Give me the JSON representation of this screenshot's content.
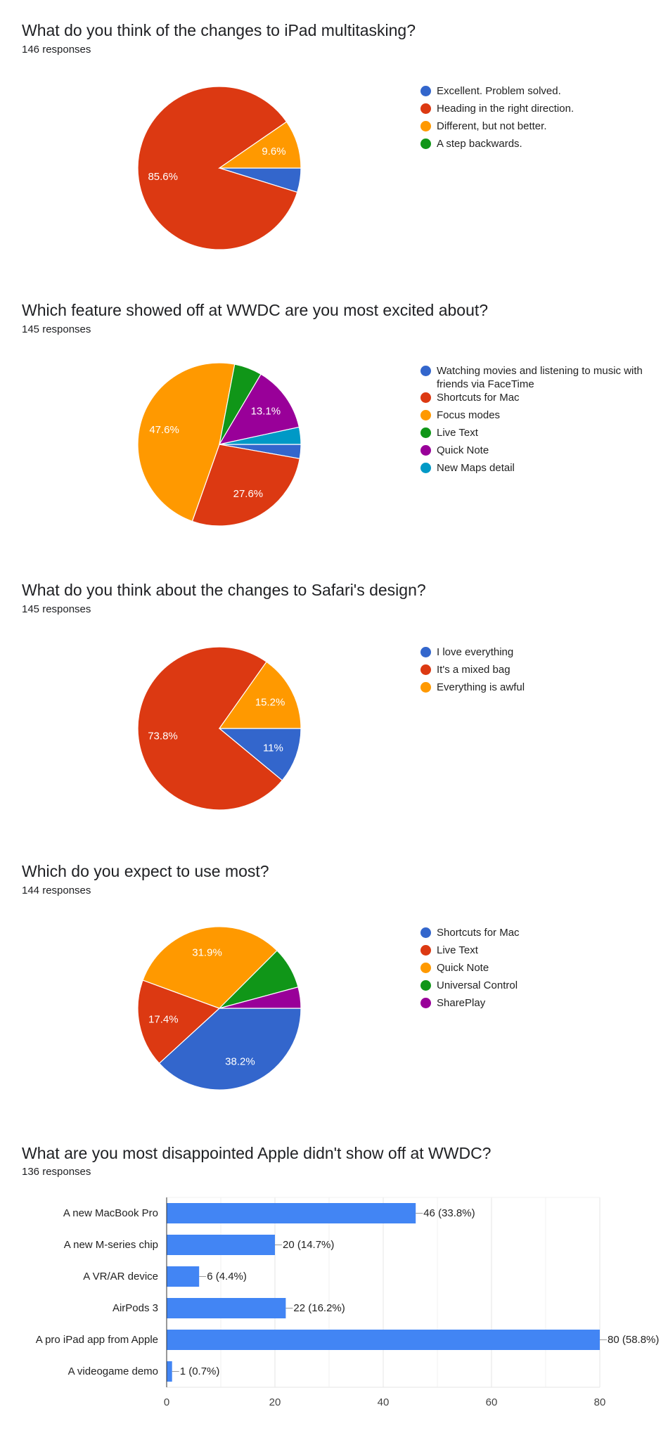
{
  "colors": {
    "blue": "#3366cc",
    "red": "#dc3912",
    "orange": "#ff9900",
    "green": "#109618",
    "purple": "#990099",
    "teal": "#0099c6",
    "bar": "#4285f4"
  },
  "chart_data": [
    {
      "type": "pie",
      "title": "What do you think of the changes to iPad multitasking?",
      "subtitle": "146 responses",
      "legend": "right",
      "slices": [
        {
          "name": "Excellent. Problem solved.",
          "percent": 4.8,
          "color": "#3366cc",
          "label": ""
        },
        {
          "name": "Heading in the right direction.",
          "percent": 85.6,
          "color": "#dc3912",
          "label": "85.6%"
        },
        {
          "name": "Different, but not better.",
          "percent": 9.6,
          "color": "#ff9900",
          "label": "9.6%"
        },
        {
          "name": "A step backwards.",
          "percent": 0,
          "color": "#109618",
          "label": ""
        }
      ]
    },
    {
      "type": "pie",
      "title": "Which feature showed off at WWDC are you most excited about?",
      "subtitle": "145 responses",
      "legend": "right",
      "slices": [
        {
          "name": "Watching movies and listening to music with friends via FaceTime",
          "percent": 2.8,
          "color": "#3366cc",
          "label": ""
        },
        {
          "name": "Shortcuts for Mac",
          "percent": 27.6,
          "color": "#dc3912",
          "label": "27.6%"
        },
        {
          "name": "Focus modes",
          "percent": 47.6,
          "color": "#ff9900",
          "label": "47.6%"
        },
        {
          "name": "Live Text",
          "percent": 5.5,
          "color": "#109618",
          "label": ""
        },
        {
          "name": "Quick Note",
          "percent": 13.1,
          "color": "#990099",
          "label": "13.1%"
        },
        {
          "name": "New Maps detail",
          "percent": 3.4,
          "color": "#0099c6",
          "label": ""
        }
      ]
    },
    {
      "type": "pie",
      "title": "What do you think about the changes to Safari's design?",
      "subtitle": "145 responses",
      "legend": "right",
      "slices": [
        {
          "name": "I love everything",
          "percent": 11,
          "color": "#3366cc",
          "label": "11%"
        },
        {
          "name": "It's a mixed bag",
          "percent": 73.8,
          "color": "#dc3912",
          "label": "73.8%"
        },
        {
          "name": "Everything is awful",
          "percent": 15.2,
          "color": "#ff9900",
          "label": "15.2%"
        }
      ]
    },
    {
      "type": "pie",
      "title": "Which do you expect to use most?",
      "subtitle": "144 responses",
      "legend": "right",
      "slices": [
        {
          "name": "Shortcuts for Mac",
          "percent": 38.2,
          "color": "#3366cc",
          "label": "38.2%"
        },
        {
          "name": "Live Text",
          "percent": 17.4,
          "color": "#dc3912",
          "label": "17.4%"
        },
        {
          "name": "Quick Note",
          "percent": 31.9,
          "color": "#ff9900",
          "label": "31.9%"
        },
        {
          "name": "Universal Control",
          "percent": 8.3,
          "color": "#109618",
          "label": ""
        },
        {
          "name": "SharePlay",
          "percent": 4.2,
          "color": "#990099",
          "label": ""
        }
      ]
    },
    {
      "type": "bar",
      "orientation": "horizontal",
      "title": "What are you most disappointed Apple didn't show off at WWDC?",
      "subtitle": "136 responses",
      "categories": [
        "A new MacBook Pro",
        "A new M-series chip",
        "A VR/AR device",
        "AirPods 3",
        "A pro iPad app from Apple",
        "A videogame demo"
      ],
      "values": [
        46,
        20,
        6,
        22,
        80,
        1
      ],
      "data_labels": [
        "46 (33.8%)",
        "20 (14.7%)",
        "6 (4.4%)",
        "22 (16.2%)",
        "80 (58.8%)",
        "1 (0.7%)"
      ],
      "xticks": [
        "0",
        "20",
        "40",
        "60",
        "80"
      ],
      "xlim": [
        0,
        80
      ],
      "grid": true,
      "color": "#4285f4"
    }
  ]
}
